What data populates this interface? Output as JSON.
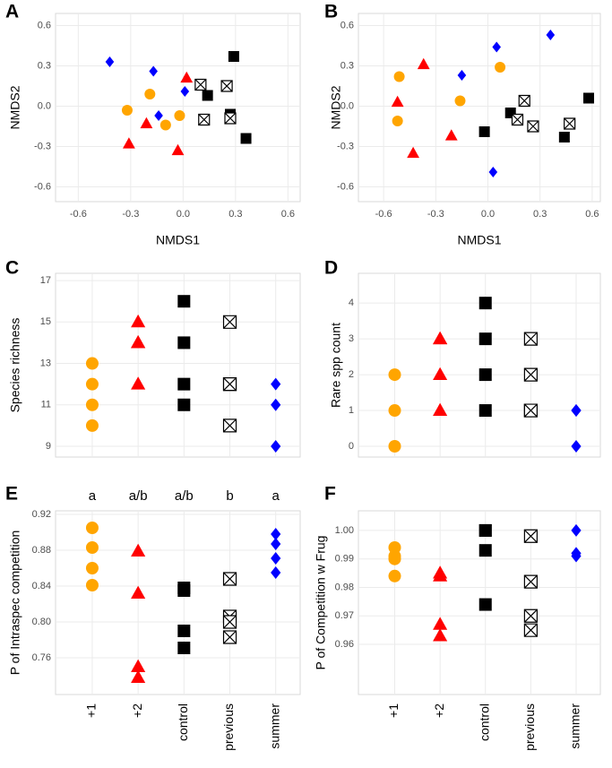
{
  "chart_data": [
    {
      "type": "scatter",
      "label": "A",
      "x_label": "NMDS1",
      "y_label": "NMDS2",
      "grid": true,
      "xlim": [
        -0.73,
        0.67
      ],
      "ylim": [
        -0.71,
        0.69
      ],
      "xticks": [
        -0.6,
        -0.3,
        {
          "value": 0,
          "label": "0.0"
        },
        0.3,
        0.6
      ],
      "yticks": [
        -0.6,
        -0.3,
        {
          "value": 0,
          "label": "0.0"
        },
        0.3,
        0.6
      ],
      "series": [
        {
          "color": "#ffa500",
          "marker": "circle",
          "x": [
            -0.32,
            -0.19,
            -0.1,
            -0.02
          ],
          "y": [
            -0.03,
            0.09,
            -0.14,
            -0.07
          ]
        },
        {
          "color": "#ff0000",
          "marker": "triangle",
          "x": [
            -0.31,
            -0.21,
            -0.03,
            0.02
          ],
          "y": [
            -0.28,
            -0.13,
            -0.33,
            0.21
          ]
        },
        {
          "color": "#000000",
          "marker": "square",
          "x": [
            0.29,
            0.14,
            0.27,
            0.36
          ],
          "y": [
            0.37,
            0.08,
            -0.06,
            -0.24
          ]
        },
        {
          "color": "#000000",
          "marker": "crossed-square",
          "x": [
            0.1,
            0.25,
            0.12,
            0.27
          ],
          "y": [
            0.16,
            0.15,
            -0.1,
            -0.09
          ]
        },
        {
          "color": "#0000ff",
          "marker": "diamond",
          "x": [
            -0.42,
            -0.17,
            -0.14,
            0.01
          ],
          "y": [
            0.33,
            0.26,
            -0.07,
            0.11
          ]
        }
      ]
    },
    {
      "type": "scatter",
      "label": "B",
      "x_label": "NMDS1",
      "y_label": "NMDS2",
      "grid": true,
      "xlim": [
        -0.745,
        0.647
      ],
      "ylim": [
        -0.71,
        0.69
      ],
      "xticks": [
        -0.6,
        -0.3,
        {
          "value": 0,
          "label": "0.0"
        },
        0.3,
        0.6
      ],
      "yticks": [
        -0.6,
        -0.3,
        {
          "value": 0,
          "label": "0.0"
        },
        0.3,
        0.6
      ],
      "series": [
        {
          "color": "#ffa500",
          "marker": "circle",
          "x": [
            -0.51,
            -0.52,
            -0.16,
            0.07
          ],
          "y": [
            0.22,
            -0.11,
            0.04,
            0.29
          ]
        },
        {
          "color": "#ff0000",
          "marker": "triangle",
          "x": [
            -0.52,
            -0.37,
            -0.43,
            -0.21
          ],
          "y": [
            0.03,
            0.31,
            -0.35,
            -0.22
          ]
        },
        {
          "color": "#000000",
          "marker": "square",
          "x": [
            0.58,
            0.13,
            -0.02,
            0.44
          ],
          "y": [
            0.06,
            -0.05,
            -0.19,
            -0.23
          ]
        },
        {
          "color": "#000000",
          "marker": "crossed-square",
          "x": [
            0.21,
            0.17,
            0.26,
            0.47
          ],
          "y": [
            0.04,
            -0.1,
            -0.15,
            -0.13
          ]
        },
        {
          "color": "#0000ff",
          "marker": "diamond",
          "x": [
            0.05,
            0.36,
            -0.15,
            0.03
          ],
          "y": [
            0.44,
            0.53,
            0.23,
            -0.49
          ]
        }
      ]
    },
    {
      "type": "strip",
      "label": "C",
      "y_label": "Species richness",
      "grid": true,
      "ylim": [
        8.48,
        17.35
      ],
      "yticks": [
        9,
        11,
        13,
        15,
        17
      ],
      "series": [
        {
          "color": "#ffa500",
          "marker": "circle",
          "values": [
            10,
            11,
            12,
            13
          ]
        },
        {
          "color": "#ff0000",
          "marker": "triangle",
          "values": [
            12,
            14,
            14,
            15
          ]
        },
        {
          "color": "#000000",
          "marker": "square",
          "values": [
            11,
            12,
            14,
            16
          ]
        },
        {
          "color": "#000000",
          "marker": "crossed-square",
          "values": [
            10,
            12,
            12,
            15
          ]
        },
        {
          "color": "#0000ff",
          "marker": "diamond",
          "values": [
            9,
            11,
            12
          ]
        }
      ]
    },
    {
      "type": "strip",
      "label": "D",
      "y_label": "Rare spp count",
      "grid": true,
      "ylim": [
        -0.3,
        4.83
      ],
      "yticks": [
        0,
        1,
        2,
        3,
        4
      ],
      "series": [
        {
          "color": "#ffa500",
          "marker": "circle",
          "values": [
            0,
            1,
            2
          ]
        },
        {
          "color": "#ff0000",
          "marker": "triangle",
          "values": [
            1,
            2,
            3,
            3
          ]
        },
        {
          "color": "#000000",
          "marker": "square",
          "values": [
            1,
            2,
            3,
            4
          ]
        },
        {
          "color": "#000000",
          "marker": "crossed-square",
          "values": [
            1,
            1,
            2,
            3
          ]
        },
        {
          "color": "#0000ff",
          "marker": "diamond",
          "values": [
            0,
            1,
            1
          ]
        }
      ]
    },
    {
      "type": "strip",
      "label": "E",
      "y_label": "P of Intraspec competition",
      "grid": true,
      "categories": [
        "+1",
        "+2",
        "control",
        "previous",
        "summer"
      ],
      "annotations": [
        "a",
        "a/b",
        "a/b",
        "b",
        "a"
      ],
      "ylim": [
        0.719,
        0.924
      ],
      "yticks": [
        0.76,
        {
          "value": 0.8,
          "label": "0.80"
        },
        0.84,
        0.88,
        0.92
      ],
      "series": [
        {
          "color": "#ffa500",
          "marker": "circle",
          "values": [
            0.905,
            0.883,
            0.86,
            0.841
          ]
        },
        {
          "color": "#ff0000",
          "marker": "triangle",
          "values": [
            0.879,
            0.832,
            0.75,
            0.738
          ]
        },
        {
          "color": "#000000",
          "marker": "square",
          "values": [
            0.838,
            0.835,
            0.79,
            0.771
          ]
        },
        {
          "color": "#000000",
          "marker": "crossed-square",
          "values": [
            0.848,
            0.806,
            0.8,
            0.783
          ]
        },
        {
          "color": "#0000ff",
          "marker": "diamond",
          "values": [
            0.898,
            0.887,
            0.871,
            0.855
          ]
        }
      ]
    },
    {
      "type": "strip",
      "label": "F",
      "y_label": "P of Competition w Frug",
      "grid": true,
      "categories": [
        "+1",
        "+2",
        "control",
        "previous",
        "summer"
      ],
      "ylim": [
        0.9424,
        1.0069
      ],
      "yticks": [
        0.96,
        0.97,
        0.98,
        0.99,
        {
          "value": 1,
          "label": "1.00"
        }
      ],
      "series": [
        {
          "color": "#ffa500",
          "marker": "circle",
          "values": [
            0.994,
            0.991,
            0.99,
            0.984
          ]
        },
        {
          "color": "#ff0000",
          "marker": "triangle",
          "values": [
            0.985,
            0.984,
            0.967,
            0.963
          ]
        },
        {
          "color": "#000000",
          "marker": "square",
          "values": [
            1.0,
            1.0,
            0.993,
            0.974
          ]
        },
        {
          "color": "#000000",
          "marker": "crossed-square",
          "values": [
            0.998,
            0.982,
            0.97,
            0.965
          ]
        },
        {
          "color": "#0000ff",
          "marker": "diamond",
          "values": [
            1.0,
            0.992,
            0.991
          ]
        }
      ]
    }
  ]
}
